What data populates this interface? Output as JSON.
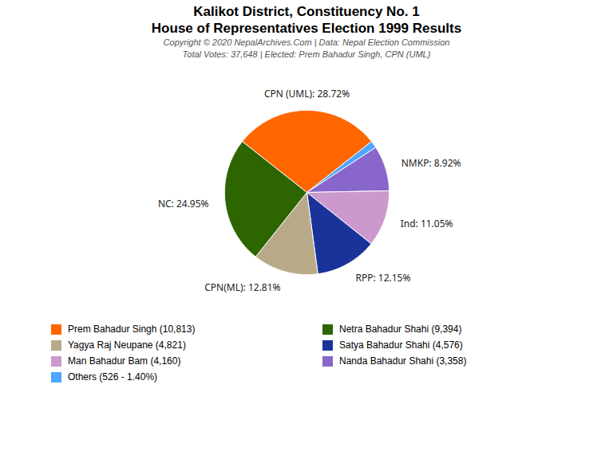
{
  "chart_data": {
    "type": "pie",
    "title": "Kalikot District, Constituency No. 1\nHouse of Representatives Election 1999 Results",
    "annotations": [
      "Copyright © 2020 NepalArchives.Com | Data: Nepal Election Commission"
    ],
    "subtitle": "Total Votes: 37,648 | Elected: Prem Bahadur Singh, CPN (UML)",
    "categories": [
      "CPN (UML): 28.72%",
      null,
      "NMKP: 8.92%",
      "Ind: 11.05%",
      "RPP: 12.15%",
      "CPN(ML): 12.81%",
      "NC: 24.95%"
    ],
    "values": [
      28.72,
      1.4,
      8.92,
      11.05,
      12.15,
      12.81,
      24.95
    ],
    "colors": [
      "#ff6600",
      "#4da6ff",
      "#8866cc",
      "#cc99cc",
      "#1a3399",
      "#b8aa88",
      "#2d6600"
    ],
    "legend": "bottom",
    "legend_entries": [
      {
        "label": "Prem Bahadur Singh (10,813)",
        "color": "#ff6600"
      },
      {
        "label": "Yagya Raj Neupane (4,821)",
        "color": "#b8aa88"
      },
      {
        "label": "Man Bahadur Bam (4,160)",
        "color": "#cc99cc"
      },
      {
        "label": "Others (526 - 1.40%)",
        "color": "#4da6ff"
      },
      {
        "label": "Netra Bahadur Shahi (9,394)",
        "color": "#2d6600"
      },
      {
        "label": "Satya Bahadur Shahi (4,576)",
        "color": "#1a3399"
      },
      {
        "label": "Nanda Bahadur Shahi (3,358)",
        "color": "#8866cc"
      }
    ]
  }
}
